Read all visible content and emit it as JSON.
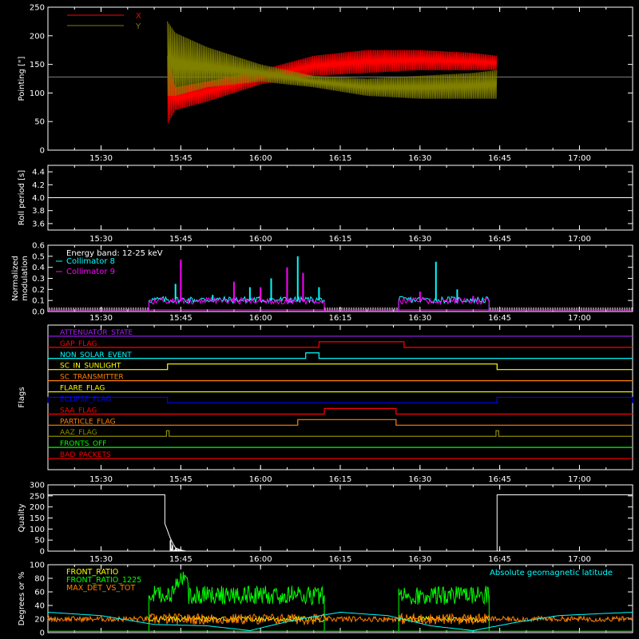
{
  "colors": {
    "bg": "#000000",
    "axes": "#ffffff",
    "red": "#ff0000",
    "olive": "#808000",
    "cyan": "#00ffff",
    "magenta": "#ff00ff",
    "purple": "#a020f0",
    "orange": "#ff8000",
    "yellow": "#ffff00",
    "blue": "#0000ff",
    "green": "#00ff00",
    "darkorange": "#ff6a00",
    "olivegreen": "#8b8b00"
  },
  "time_axis": {
    "range": [
      "15:20",
      "17:10"
    ],
    "tick_labels": [
      "15:30",
      "15:45",
      "16:00",
      "16:15",
      "16:30",
      "16:45",
      "17:00"
    ],
    "tick_minutes": [
      930,
      945,
      960,
      975,
      990,
      1005,
      1020
    ]
  },
  "chart_data": [
    {
      "type": "line",
      "ylabel": "Pointing [\"]",
      "ylim": [
        0,
        250
      ],
      "yticks": [
        0,
        50,
        100,
        150,
        200,
        250
      ],
      "series": [
        {
          "name": "X",
          "color": "#ff0000",
          "envelope_x": [
            942.5,
            944,
            950,
            960,
            970,
            980,
            990,
            1000,
            1004.5
          ],
          "upper": [
            165,
            110,
            120,
            140,
            165,
            175,
            175,
            170,
            165
          ],
          "lower": [
            45,
            70,
            85,
            115,
            130,
            135,
            140,
            140,
            140
          ]
        },
        {
          "name": "Y",
          "color": "#808000",
          "envelope_x": [
            942.5,
            944,
            950,
            960,
            970,
            980,
            990,
            1000,
            1004.5
          ],
          "upper": [
            225,
            205,
            180,
            150,
            130,
            125,
            130,
            135,
            140
          ],
          "lower": [
            95,
            95,
            110,
            120,
            110,
            95,
            90,
            90,
            90
          ]
        }
      ],
      "baseline": {
        "value": 128,
        "color": "#808080"
      },
      "legend": "top-left"
    },
    {
      "type": "line",
      "ylabel": "Roll period [s]",
      "ylim": [
        3.5,
        4.5
      ],
      "yticks": [
        3.6,
        3.8,
        4.0,
        4.2,
        4.4
      ],
      "series": [
        {
          "color": "#ffffff",
          "x": [
            920,
            1030
          ],
          "y": [
            4.0,
            4.0
          ]
        }
      ]
    },
    {
      "type": "line",
      "ylabel": "Normalized modulation",
      "ylim": [
        0,
        0.6
      ],
      "yticks": [
        0.0,
        0.1,
        0.2,
        0.3,
        0.4,
        0.5,
        0.6
      ],
      "annotation": "Energy band: 12-25 keV",
      "series": [
        {
          "name": "Collimator 8",
          "color": "#00ffff",
          "active": [
            [
              939,
              972
            ],
            [
              986,
              1003
            ]
          ],
          "base": 0.1,
          "spikes": [
            [
              944,
              0.25
            ],
            [
              951,
              0.15
            ],
            [
              958,
              0.22
            ],
            [
              962,
              0.3
            ],
            [
              967,
              0.5
            ],
            [
              971,
              0.22
            ],
            [
              993,
              0.45
            ],
            [
              997,
              0.2
            ]
          ]
        },
        {
          "name": "Collimator 9",
          "color": "#ff00ff",
          "active": [
            [
              939,
              972
            ],
            [
              986,
              1003
            ]
          ],
          "base": 0.09,
          "spikes": [
            [
              945,
              0.47
            ],
            [
              955,
              0.27
            ],
            [
              960,
              0.22
            ],
            [
              965,
              0.4
            ],
            [
              968,
              0.35
            ],
            [
              990,
              0.18
            ],
            [
              1000,
              0.14
            ]
          ]
        }
      ],
      "legend": "top-left"
    },
    {
      "type": "line",
      "ylabel": "Flags",
      "flags": [
        {
          "name": "ATTENUATOR_STATE",
          "color": "#a020f0",
          "on": []
        },
        {
          "name": "GAP_FLAG",
          "color": "#ff0000",
          "on": [
            [
              971,
              987
            ]
          ]
        },
        {
          "name": "NON_SOLAR_EVENT",
          "color": "#00ffff",
          "on": [
            [
              968.5,
              971
            ]
          ]
        },
        {
          "name": "SC_IN_SUNLIGHT",
          "color": "#ffff00",
          "on": [
            [
              942.5,
              1004.5
            ]
          ]
        },
        {
          "name": "SC_TRANSMITTER",
          "color": "#ff8000",
          "on": []
        },
        {
          "name": "FLARE_FLAG",
          "color": "#ffff00",
          "on": []
        },
        {
          "name": "ECLIPSE_FLAG",
          "color": "#0000ff",
          "on": [
            [
              920,
              942.5
            ],
            [
              1004.5,
              1030
            ]
          ]
        },
        {
          "name": "SAA_FLAG",
          "color": "#ff0000",
          "on": [
            [
              972,
              985.5
            ]
          ]
        },
        {
          "name": "PARTICLE_FLAG",
          "color": "#ff8000",
          "on": [
            [
              967,
              985.5
            ]
          ]
        },
        {
          "name": "AAZ_FLAG",
          "color": "#8b8b00",
          "on": [
            [
              942.3,
              942.8
            ],
            [
              1004.3,
              1004.8
            ]
          ]
        },
        {
          "name": "FRONTS_OFF",
          "color": "#00ff00",
          "on": []
        },
        {
          "name": "BAD_PACKETS",
          "color": "#ff0000",
          "on": []
        }
      ]
    },
    {
      "type": "line",
      "ylabel": "Quality",
      "ylim": [
        0,
        300
      ],
      "yticks": [
        0,
        50,
        100,
        150,
        200,
        250,
        300
      ],
      "series": [
        {
          "color": "#ffffff",
          "x": [
            920,
            942,
            942,
            943,
            943.5,
            944,
            945,
            946,
            1004.5,
            1004.5,
            1030
          ],
          "y": [
            255,
            255,
            125,
            60,
            35,
            15,
            5,
            0,
            0,
            255,
            255
          ]
        }
      ]
    },
    {
      "type": "line",
      "ylabel": "Degrees or %",
      "ylim": [
        0,
        100
      ],
      "yticks": [
        0,
        20,
        40,
        60,
        80,
        100
      ],
      "annotation": "Absolute geomagnetic latitude",
      "series": [
        {
          "name": "FRONT_RATIO",
          "color": "#ffff00",
          "active": [
            [
              939,
              972
            ],
            [
              986,
              1003
            ]
          ],
          "base": 20
        },
        {
          "name": "FRONT_RATIO_1225",
          "color": "#00ff00",
          "active": [
            [
              939,
              972
            ],
            [
              986,
              1003
            ]
          ],
          "base": 55
        },
        {
          "name": "MAX_DET_VS_TOT",
          "color": "#ff8000",
          "active": [
            [
              920,
              1030
            ]
          ],
          "base": 20
        },
        {
          "name": "Absolute geomagnetic latitude",
          "color": "#00ffff",
          "x": [
            920,
            930,
            940,
            950,
            958,
            966,
            975,
            984,
            992,
            1000,
            1008,
            1016,
            1024,
            1030
          ],
          "y": [
            30,
            25,
            12,
            10,
            3,
            18,
            30,
            25,
            10,
            3,
            15,
            25,
            28,
            30
          ]
        }
      ],
      "legend": "top-left"
    }
  ]
}
